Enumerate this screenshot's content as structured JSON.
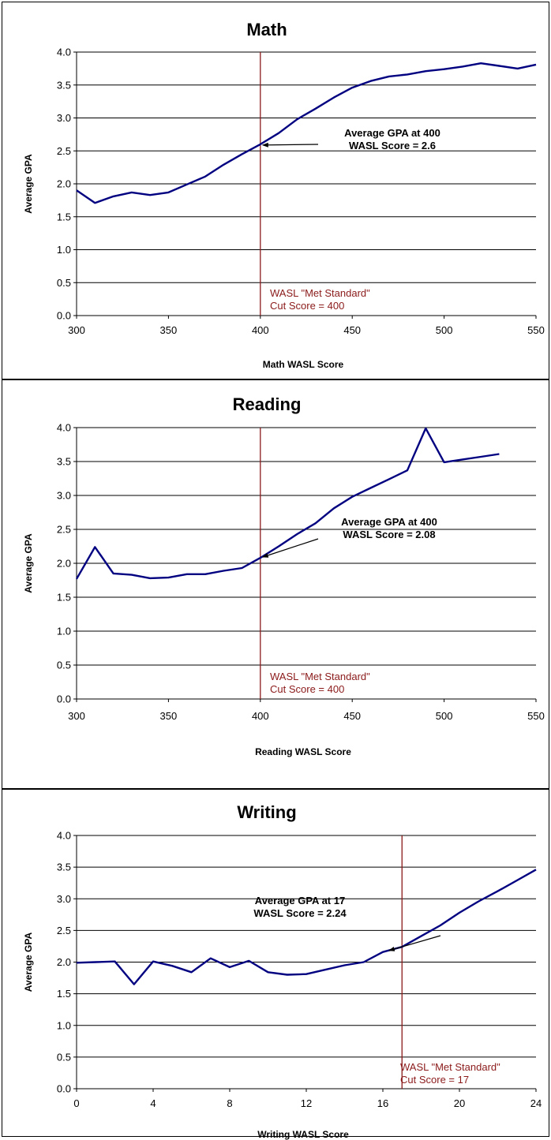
{
  "colors": {
    "line": "#000080",
    "cutline": "#8b1a1a",
    "cut_text": "#8b1a1a",
    "grid": "#000000",
    "frame": "#000000",
    "text": "#000000"
  },
  "chart_data": [
    {
      "type": "line",
      "title": "Math",
      "xlabel": "Math WASL Score",
      "ylabel": "Average GPA",
      "xlim": [
        300,
        550
      ],
      "ylim": [
        0,
        4
      ],
      "x_ticks": [
        "300",
        "350",
        "400",
        "450",
        "500",
        "550"
      ],
      "y_ticks": [
        "0.0",
        "0.5",
        "1.0",
        "1.5",
        "2.0",
        "2.5",
        "3.0",
        "3.5",
        "4.0"
      ],
      "grid": "horizontal",
      "cut_line": {
        "x": 400,
        "label": [
          "WASL \"Met Standard\"",
          "Cut Score = 400"
        ]
      },
      "annotation": {
        "lines": [
          "Average GPA at 400",
          "WASL Score = 2.6"
        ],
        "x": 400,
        "y": 2.6
      },
      "x": [
        300,
        310,
        320,
        330,
        340,
        350,
        360,
        370,
        380,
        390,
        400,
        410,
        420,
        430,
        440,
        450,
        460,
        470,
        480,
        490,
        500,
        510,
        520,
        530,
        540,
        550
      ],
      "y": [
        1.9,
        1.71,
        1.81,
        1.87,
        1.83,
        1.87,
        1.99,
        2.11,
        2.29,
        2.45,
        2.6,
        2.77,
        2.98,
        3.14,
        3.31,
        3.46,
        3.56,
        3.63,
        3.66,
        3.71,
        3.74,
        3.78,
        3.83,
        3.79,
        3.75,
        3.81
      ]
    },
    {
      "type": "line",
      "title": "Reading",
      "xlabel": "Reading WASL Score",
      "ylabel": "Average GPA",
      "xlim": [
        300,
        550
      ],
      "ylim": [
        0,
        4
      ],
      "x_ticks": [
        "300",
        "350",
        "400",
        "450",
        "500",
        "550"
      ],
      "y_ticks": [
        "0.0",
        "0.5",
        "1.0",
        "1.5",
        "2.0",
        "2.5",
        "3.0",
        "3.5",
        "4.0"
      ],
      "grid": "horizontal",
      "cut_line": {
        "x": 400,
        "label": [
          "WASL \"Met Standard\"",
          "Cut Score = 400"
        ]
      },
      "annotation": {
        "lines": [
          "Average GPA at 400",
          "WASL Score = 2.08"
        ],
        "x": 400,
        "y": 2.08
      },
      "x": [
        300,
        310,
        320,
        330,
        340,
        350,
        360,
        370,
        380,
        390,
        400,
        410,
        420,
        430,
        440,
        450,
        460,
        470,
        480,
        490,
        500,
        510,
        520,
        530
      ],
      "y": [
        1.77,
        2.24,
        1.85,
        1.83,
        1.78,
        1.79,
        1.84,
        1.84,
        1.89,
        1.93,
        2.08,
        2.25,
        2.43,
        2.59,
        2.81,
        2.98,
        3.11,
        3.24,
        3.37,
        3.99,
        3.49,
        3.53,
        3.57,
        3.61
      ]
    },
    {
      "type": "line",
      "title": "Writing",
      "xlabel": "Writing WASL Score",
      "ylabel": "Average GPA",
      "xlim": [
        0,
        24
      ],
      "ylim": [
        0,
        4
      ],
      "x_ticks": [
        "0",
        "4",
        "8",
        "12",
        "16",
        "20",
        "24"
      ],
      "y_ticks": [
        "0.0",
        "0.5",
        "1.0",
        "1.5",
        "2.0",
        "2.5",
        "3.0",
        "3.5",
        "4.0"
      ],
      "grid": "horizontal",
      "cut_line": {
        "x": 17,
        "label": [
          "WASL \"Met Standard\"",
          "Cut Score = 17"
        ]
      },
      "annotation": {
        "lines": [
          "Average GPA at 17",
          "WASL Score = 2.24"
        ],
        "x": 16.2,
        "y": 2.17
      },
      "x": [
        0,
        1,
        2,
        3,
        4,
        5,
        6,
        7,
        8,
        9,
        10,
        11,
        12,
        13,
        14,
        15,
        16,
        17,
        18,
        19,
        20,
        21,
        22,
        23,
        24
      ],
      "y": [
        1.99,
        2.0,
        2.01,
        1.65,
        2.01,
        1.94,
        1.84,
        2.06,
        1.92,
        2.02,
        1.84,
        1.8,
        1.81,
        1.88,
        1.95,
        2.0,
        2.16,
        2.24,
        2.41,
        2.58,
        2.78,
        2.96,
        3.12,
        3.29,
        3.46
      ]
    }
  ]
}
